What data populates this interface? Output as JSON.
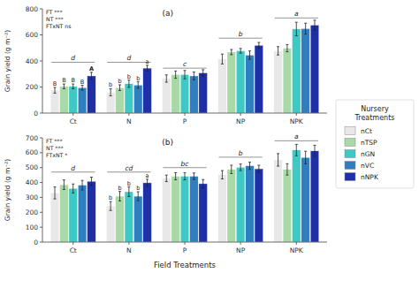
{
  "chart_data": [
    {
      "type": "bar",
      "title": "(a)",
      "annotations": [
        "FT ***",
        "NT ***",
        "FTxNT ns"
      ],
      "ylabel": "Grain yield (g m⁻²)",
      "categories": [
        "Ct",
        "N",
        "P",
        "NP",
        "NPK"
      ],
      "series": [
        {
          "name": "nCt",
          "color": "#e8e8e8",
          "values": [
            175,
            160,
            265,
            415,
            478
          ],
          "errors": [
            22,
            28,
            28,
            38,
            32
          ]
        },
        {
          "name": "nTSP",
          "color": "#aad9a8",
          "values": [
            205,
            195,
            295,
            468,
            498
          ],
          "errors": [
            18,
            22,
            28,
            20,
            28
          ]
        },
        {
          "name": "nGN",
          "color": "#3ec9c4",
          "values": [
            205,
            225,
            295,
            478,
            645
          ],
          "errors": [
            18,
            28,
            32,
            18,
            52
          ]
        },
        {
          "name": "nVC",
          "color": "#2f7fc0",
          "values": [
            195,
            215,
            285,
            445,
            648
          ],
          "errors": [
            18,
            25,
            30,
            32,
            42
          ]
        },
        {
          "name": "nNPK",
          "color": "#1e2fa8",
          "values": [
            285,
            345,
            308,
            520,
            675
          ],
          "errors": [
            28,
            22,
            25,
            22,
            38
          ]
        }
      ],
      "bar_letters": [
        {
          "category": "Ct",
          "labels": [
            "B",
            "B",
            "B",
            "B",
            "A"
          ]
        },
        {
          "category": "N",
          "labels": [
            "b",
            "b",
            "b",
            "b",
            "a"
          ]
        }
      ],
      "groups": [
        {
          "label": "d",
          "y": 390
        },
        {
          "label": "d",
          "y": 390
        },
        {
          "label": "c",
          "y": 345
        },
        {
          "label": "b",
          "y": 575
        },
        {
          "label": "a",
          "y": 730
        }
      ],
      "ylim": [
        0,
        800
      ],
      "yticks": [
        0,
        200,
        400,
        600,
        800
      ],
      "legend": "right",
      "legend_title": "Nursery\nTreatments"
    },
    {
      "type": "bar",
      "title": "(b)",
      "annotations": [
        "FT ***",
        "NT ***",
        "FTxNT *"
      ],
      "ylabel": "Grain yield (g m⁻²)",
      "xlabel": "Field Treatments",
      "categories": [
        "Ct",
        "N",
        "P",
        "NP",
        "NPK"
      ],
      "series": [
        {
          "name": "nCt",
          "color": "#e8e8e8",
          "values": [
            330,
            242,
            428,
            452,
            552
          ],
          "errors": [
            40,
            30,
            22,
            28,
            42
          ]
        },
        {
          "name": "nTSP",
          "color": "#aad9a8",
          "values": [
            385,
            308,
            442,
            488,
            488
          ],
          "errors": [
            32,
            32,
            24,
            28,
            38
          ]
        },
        {
          "name": "nGN",
          "color": "#3ec9c4",
          "values": [
            360,
            338,
            442,
            502,
            618
          ],
          "errors": [
            30,
            32,
            24,
            22,
            38
          ]
        },
        {
          "name": "nVC",
          "color": "#2f7fc0",
          "values": [
            382,
            308,
            442,
            512,
            568
          ],
          "errors": [
            32,
            30,
            22,
            24,
            42
          ]
        },
        {
          "name": "nNPK",
          "color": "#1e2fa8",
          "values": [
            408,
            398,
            392,
            492,
            612
          ],
          "errors": [
            28,
            24,
            28,
            24,
            38
          ]
        }
      ],
      "bar_letters": [
        {
          "category": "N",
          "labels": [
            "b",
            "b",
            "b",
            "b",
            "a"
          ]
        }
      ],
      "groups": [
        {
          "label": "d",
          "y": 470
        },
        {
          "label": "cd",
          "y": 470
        },
        {
          "label": "bc",
          "y": 500
        },
        {
          "label": "b",
          "y": 570
        },
        {
          "label": "a",
          "y": 680
        }
      ],
      "ylim": [
        0,
        700
      ],
      "yticks": [
        0,
        100,
        200,
        300,
        400,
        500,
        600,
        700
      ]
    }
  ]
}
